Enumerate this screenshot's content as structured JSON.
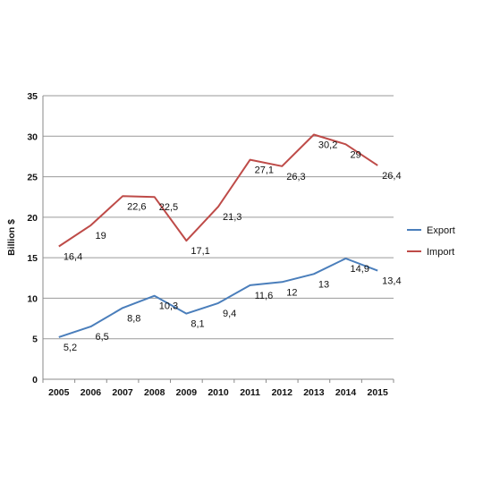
{
  "chart_data": {
    "type": "line",
    "title": "",
    "xlabel": "",
    "ylabel": "Billion $",
    "x": [
      "2005",
      "2006",
      "2007",
      "2008",
      "2009",
      "2010",
      "2011",
      "2012",
      "2013",
      "2014",
      "2015"
    ],
    "ylim": [
      0,
      35
    ],
    "yticks": [
      0,
      5,
      10,
      15,
      20,
      25,
      30,
      35
    ],
    "grid": true,
    "legend": "right",
    "series": [
      {
        "name": "Export",
        "color": "#4a7ebb",
        "values": [
          5.2,
          6.5,
          8.8,
          10.3,
          8.1,
          9.4,
          11.6,
          12,
          13,
          14.9,
          13.4
        ],
        "labels": [
          "5,2",
          "6,5",
          "8,8",
          "10,3",
          "8,1",
          "9,4",
          "11,6",
          "12",
          "13",
          "14,9",
          "13,4"
        ]
      },
      {
        "name": "Import",
        "color": "#be4b48",
        "values": [
          16.4,
          19,
          22.6,
          22.5,
          17.1,
          21.3,
          27.1,
          26.3,
          30.2,
          29,
          26.4
        ],
        "labels": [
          "16,4",
          "19",
          "22,6",
          "22,5",
          "17,1",
          "21,3",
          "27,1",
          "26,3",
          "30,2",
          "29",
          "26,4"
        ]
      }
    ]
  }
}
